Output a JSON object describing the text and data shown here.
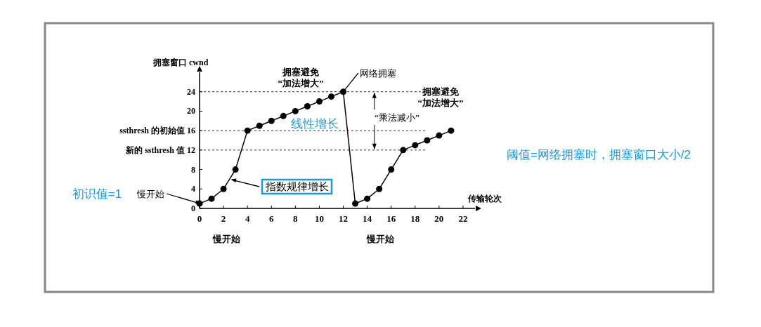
{
  "chart_data": {
    "type": "line",
    "xlabel": "传输轮次",
    "ylabel": "拥塞窗口 cwnd",
    "x": [
      0,
      1,
      2,
      3,
      4,
      5,
      6,
      7,
      8,
      9,
      10,
      11,
      12,
      13,
      14,
      15,
      16,
      17,
      18,
      19,
      20,
      21
    ],
    "series": [
      {
        "color": "#000000",
        "values": [
          1,
          2,
          4,
          8,
          16,
          17,
          18,
          19,
          20,
          21,
          22,
          23,
          24,
          1,
          2,
          4,
          8,
          12,
          13,
          14,
          15,
          16
        ]
      }
    ],
    "xlim": [
      0,
      23
    ],
    "ylim": [
      0,
      28
    ],
    "xticks": [
      0,
      2,
      4,
      6,
      8,
      10,
      12,
      14,
      16,
      18,
      20,
      22
    ],
    "yticks": [
      0,
      4,
      8,
      {
        "value": 12,
        "label": "新的 ssthresh 值 12"
      },
      {
        "value": 16,
        "label": "ssthresh 的初始值 16"
      },
      20,
      24
    ],
    "ref_lines": [
      {
        "axis": "y",
        "value": 24,
        "line_style": "dashed"
      },
      {
        "axis": "y",
        "value": 16,
        "line_style": "dashed"
      },
      {
        "axis": "y",
        "value": 12,
        "line_style": "dashed"
      }
    ],
    "marker": "circle",
    "line_style": "solid",
    "annotations": [
      "拥塞避免\n“加法增大”",
      {
        "text": "网络拥塞",
        "x": 12,
        "y": 24
      },
      "“乘法减小”",
      "拥塞避免\n“加法增大”",
      "线性增长",
      {
        "text": "指数规律增长",
        "x": 2.5,
        "y": 6
      },
      {
        "text": "慢开始",
        "x": 0,
        "y": 1
      },
      "慢开始",
      "慢开始",
      "初识值=1",
      "阈值=网络拥塞时，拥塞窗口大小/2"
    ]
  }
}
